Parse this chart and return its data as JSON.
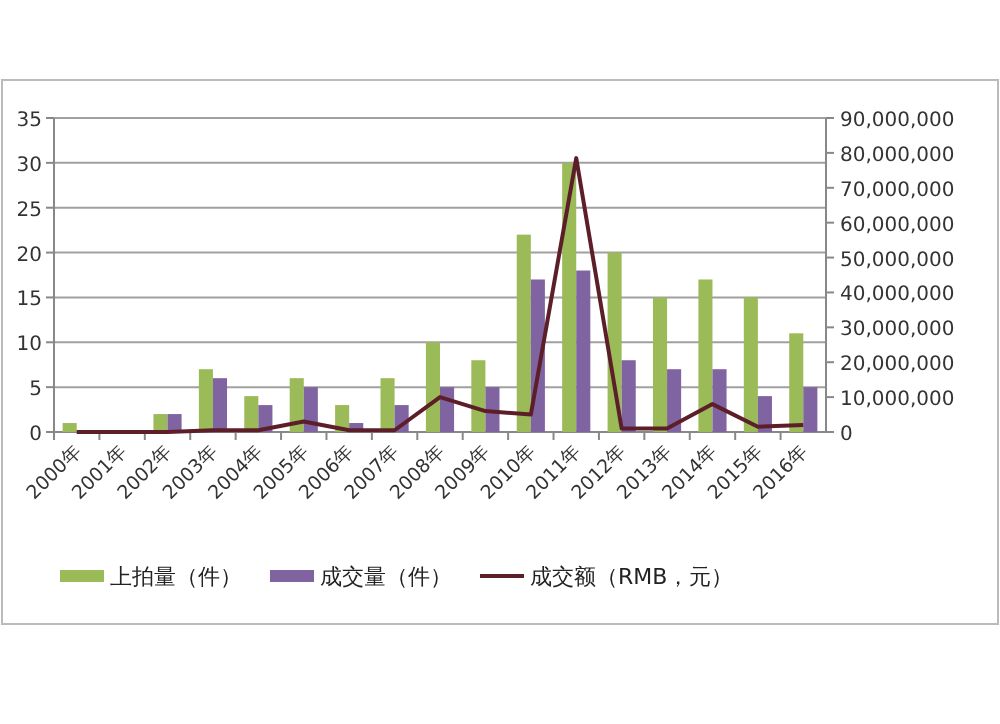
{
  "chart_data": {
    "type": "bar",
    "categories": [
      "2000年",
      "2001年",
      "2002年",
      "2003年",
      "2004年",
      "2005年",
      "2006年",
      "2007年",
      "2008年",
      "2009年",
      "2010年",
      "2011年",
      "2012年",
      "2013年",
      "2014年",
      "2015年",
      "2016年"
    ],
    "series": [
      {
        "name": "上拍量（件）",
        "color": "#9bbb59",
        "values": [
          1,
          0,
          2,
          7,
          4,
          6,
          3,
          6,
          10,
          8,
          22,
          30,
          20,
          15,
          17,
          15,
          11
        ]
      },
      {
        "name": "成交量（件）",
        "color": "#8064a2",
        "values": [
          0,
          0,
          2,
          6,
          3,
          5,
          1,
          3,
          5,
          5,
          17,
          18,
          8,
          7,
          7,
          4,
          5
        ]
      },
      {
        "name": "成交额（RMB，元）",
        "type": "line",
        "axis": "y2",
        "color": "#5c1f2a",
        "values": [
          0,
          0,
          0,
          500000,
          500000,
          3000000,
          500000,
          500000,
          10000000,
          6000000,
          5000000,
          78500000,
          1000000,
          1000000,
          8000000,
          1500000,
          2000000
        ]
      }
    ],
    "ylim": [
      0,
      35
    ],
    "yticks": [
      0,
      5,
      10,
      15,
      20,
      25,
      30,
      35
    ],
    "y2lim": [
      0,
      90000000
    ],
    "y2ticks": [
      {
        "value": 0,
        "label": "0"
      },
      {
        "value": 10000000,
        "label": "10,000,000"
      },
      {
        "value": 20000000,
        "label": "20,000,000"
      },
      {
        "value": 30000000,
        "label": "30,000,000"
      },
      {
        "value": 40000000,
        "label": "40,000,000"
      },
      {
        "value": 50000000,
        "label": "50,000,000"
      },
      {
        "value": 60000000,
        "label": "60,000,000"
      },
      {
        "value": 70000000,
        "label": "70,000,000"
      },
      {
        "value": 80000000,
        "label": "80,000,000"
      },
      {
        "value": 90000000,
        "label": "90,000,000"
      }
    ],
    "grid": "y",
    "legend": "bottom"
  }
}
